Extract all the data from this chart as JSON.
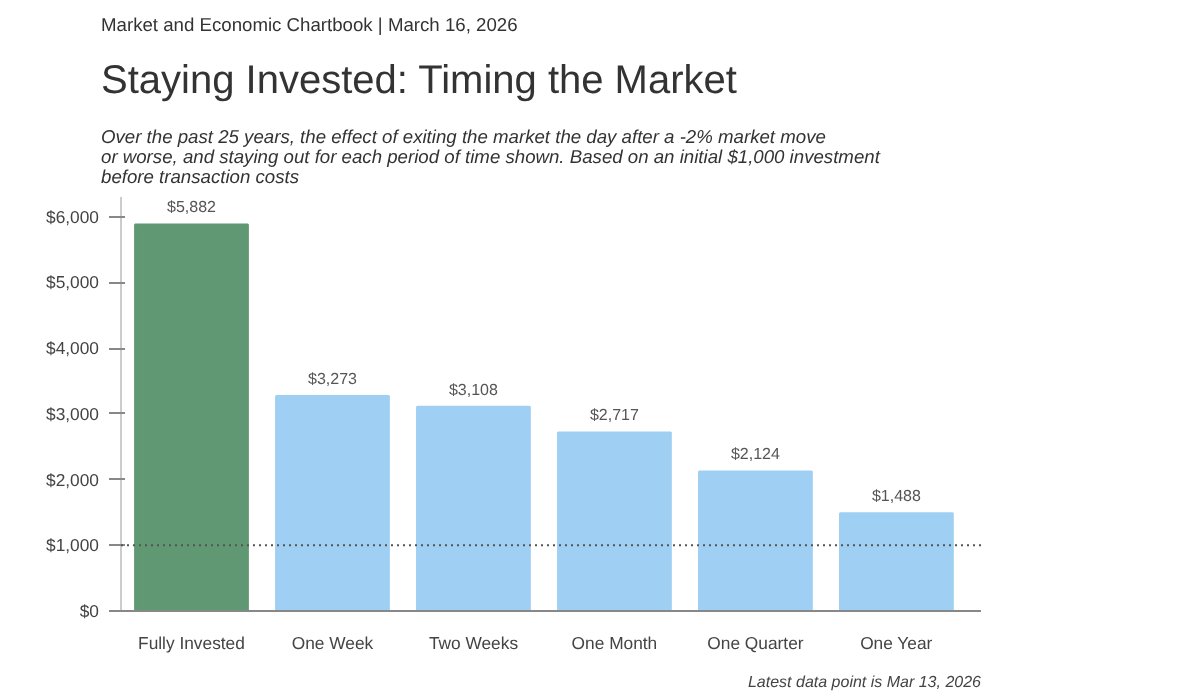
{
  "chart_data": {
    "type": "bar",
    "subtitle": "Market and Economic Chartbook | March 16, 2026",
    "title": "Staying Invested: Timing the Market",
    "annotations": [
      "Over the past 25 years, the effect of exiting the market the day after a -2% market move\nor worse, and staying out for each period of time shown. Based on an initial $1,000 investment\nbefore transaction costs",
      "Latest data point is Mar 13, 2026"
    ],
    "categories": [
      "Fully Invested",
      "One Week",
      "Two Weeks",
      "One Month",
      "One Quarter",
      "One Year"
    ],
    "values": [
      5882,
      3273,
      3108,
      2717,
      2124,
      1488
    ],
    "colors": [
      "#5f9873",
      "#9fcff3",
      "#9fcff3",
      "#9fcff3",
      "#9fcff3",
      "#9fcff3"
    ],
    "value_labels": [
      "$5,882",
      "$3,273",
      "$3,108",
      "$2,717",
      "$2,124",
      "$1,488"
    ],
    "ylim": [
      0,
      6300
    ],
    "yticks": [
      {
        "value": 0,
        "label": "$0"
      },
      {
        "value": 1000,
        "label": "$1,000"
      },
      {
        "value": 2000,
        "label": "$2,000"
      },
      {
        "value": 3000,
        "label": "$3,000"
      },
      {
        "value": 4000,
        "label": "$4,000"
      },
      {
        "value": 5000,
        "label": "$5,000"
      },
      {
        "value": 6000,
        "label": "$6,000"
      }
    ],
    "ref_lines": [
      {
        "axis": "y",
        "value": 1000,
        "color": "#555555",
        "line_style": "dotted"
      }
    ],
    "grid": false
  }
}
